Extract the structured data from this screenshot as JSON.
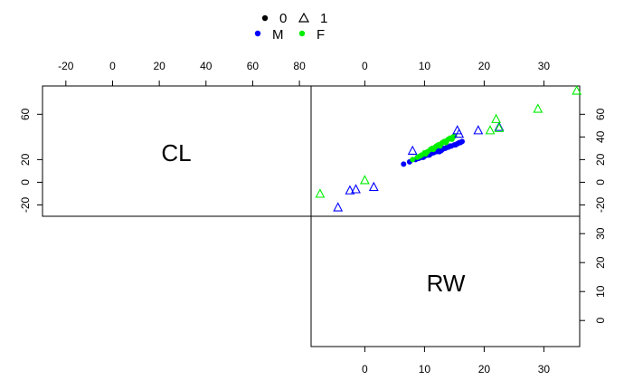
{
  "chart_data": {
    "type": "scatter",
    "title": "",
    "variables": [
      "CL",
      "RW"
    ],
    "legend": {
      "placement": "top-center",
      "shape_entries": [
        {
          "label": "0",
          "symbol": "filled-circle"
        },
        {
          "label": "1",
          "symbol": "open-triangle"
        }
      ],
      "color_entries": [
        {
          "label": "M",
          "color": "#0000ff"
        },
        {
          "label": "F",
          "color": "#00ee00"
        }
      ]
    },
    "axes": {
      "CL_top": {
        "range": [
          -30,
          85
        ],
        "ticks": [
          "-20",
          "0",
          "20",
          "40",
          "60",
          "80"
        ],
        "values": [
          -20,
          0,
          20,
          40,
          60,
          80
        ]
      },
      "CL_left": {
        "range": [
          -30,
          85
        ],
        "ticks": [
          "-20",
          "0",
          "20",
          "60"
        ],
        "values": [
          -20,
          0,
          20,
          60
        ]
      },
      "RW_top": {
        "range": [
          -9,
          36
        ],
        "ticks": [
          "0",
          "10",
          "20",
          "30"
        ],
        "values": [
          0,
          10,
          20,
          30
        ]
      },
      "RW_bottom": {
        "range": [
          -9,
          36
        ],
        "ticks": [
          "0",
          "10",
          "20",
          "30"
        ],
        "values": [
          0,
          10,
          20,
          30
        ]
      },
      "CL_right": {
        "range": [
          -30,
          85
        ],
        "ticks": [
          "-20",
          "0",
          "20",
          "40",
          "60"
        ],
        "values": [
          -20,
          0,
          20,
          40,
          60
        ]
      },
      "RW_right": {
        "range": [
          -9,
          36
        ],
        "ticks": [
          "0",
          "10",
          "20",
          "30"
        ],
        "values": [
          0,
          10,
          20,
          30
        ]
      }
    },
    "series": [
      {
        "name": "M",
        "marker": "filled-circle",
        "color": "#0000ff",
        "points": [
          [
            6.5,
            16
          ],
          [
            7.5,
            18
          ],
          [
            8.5,
            20
          ],
          [
            9.0,
            21
          ],
          [
            9.5,
            22
          ],
          [
            10.0,
            23
          ],
          [
            10.5,
            24
          ],
          [
            11.0,
            25
          ],
          [
            11.2,
            26
          ],
          [
            11.5,
            26
          ],
          [
            12.0,
            27
          ],
          [
            12.3,
            28
          ],
          [
            12.5,
            27
          ],
          [
            13.0,
            29
          ],
          [
            13.2,
            30
          ],
          [
            13.5,
            30
          ],
          [
            14.0,
            31
          ],
          [
            14.3,
            32
          ],
          [
            14.5,
            32
          ],
          [
            15.0,
            33
          ],
          [
            15.2,
            33
          ],
          [
            15.5,
            34
          ],
          [
            16.0,
            35
          ],
          [
            16.3,
            36
          ],
          [
            10.8,
            24
          ],
          [
            12.8,
            28
          ],
          [
            13.8,
            31
          ],
          [
            15.8,
            35
          ],
          [
            9.8,
            22
          ],
          [
            11.8,
            27
          ]
        ]
      },
      {
        "name": "F",
        "marker": "filled-circle",
        "color": "#00ee00",
        "points": [
          [
            8.0,
            20
          ],
          [
            8.8,
            22
          ],
          [
            9.5,
            24
          ],
          [
            10.0,
            26
          ],
          [
            10.5,
            27
          ],
          [
            11.0,
            29
          ],
          [
            11.3,
            30
          ],
          [
            11.8,
            31
          ],
          [
            12.0,
            32
          ],
          [
            12.3,
            33
          ],
          [
            12.8,
            34
          ],
          [
            13.0,
            35
          ],
          [
            13.3,
            36
          ],
          [
            13.8,
            37
          ],
          [
            14.0,
            38
          ],
          [
            14.3,
            39
          ],
          [
            14.8,
            40
          ],
          [
            15.0,
            41
          ],
          [
            9.2,
            23
          ],
          [
            10.2,
            25
          ],
          [
            11.5,
            29
          ],
          [
            12.6,
            32
          ],
          [
            13.6,
            35
          ],
          [
            14.6,
            38
          ]
        ]
      },
      {
        "name": "M (1)",
        "marker": "open-triangle",
        "color": "#0000ff",
        "points": [
          [
            -4.5,
            -22
          ],
          [
            -2.5,
            -7
          ],
          [
            -1.5,
            -6
          ],
          [
            1.5,
            -4
          ],
          [
            8.0,
            28
          ],
          [
            15.5,
            46
          ],
          [
            15.8,
            43
          ],
          [
            19.0,
            46
          ],
          [
            22.5,
            49
          ]
        ]
      },
      {
        "name": "F (1)",
        "marker": "open-triangle",
        "color": "#00ee00",
        "points": [
          [
            -7.5,
            -10
          ],
          [
            0.0,
            2
          ],
          [
            21.0,
            46
          ],
          [
            22.0,
            56
          ],
          [
            22.5,
            48
          ],
          [
            29.0,
            65
          ],
          [
            35.5,
            81
          ]
        ]
      }
    ]
  }
}
